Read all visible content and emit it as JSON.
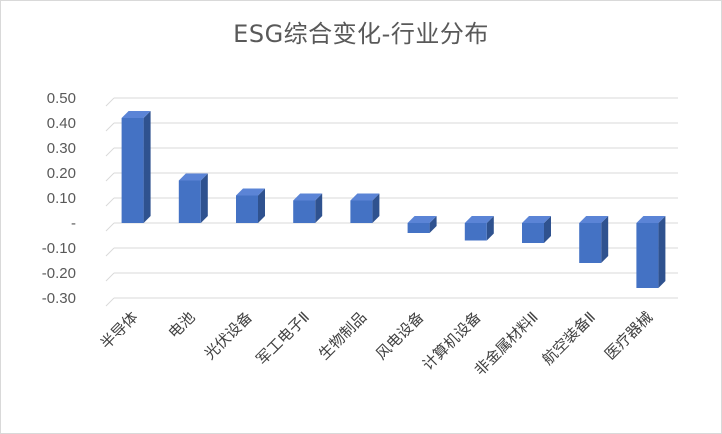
{
  "chart_data": {
    "type": "bar",
    "title": "ESG综合变化-行业分布",
    "xlabel": "",
    "ylabel": "",
    "categories": [
      "半导体",
      "电池",
      "光伏设备",
      "军工电子Ⅱ",
      "生物制品",
      "风电设备",
      "计算机设备",
      "非金属材料Ⅱ",
      "航空装备Ⅱ",
      "医疗器械"
    ],
    "values": [
      0.42,
      0.17,
      0.11,
      0.09,
      0.09,
      -0.04,
      -0.07,
      -0.08,
      -0.16,
      -0.26
    ],
    "ylim": [
      -0.3,
      0.5
    ],
    "yticks": [
      "-0.30",
      "-0.20",
      "-0.10",
      "-",
      "0.10",
      "0.20",
      "0.30",
      "0.40",
      "0.50"
    ],
    "grid": true,
    "legend": "none",
    "colors": {
      "bar_front": "#4472c4",
      "bar_side": "#2f528f",
      "bar_top": "#5b84d6",
      "grid": "#d9d9d9"
    }
  }
}
